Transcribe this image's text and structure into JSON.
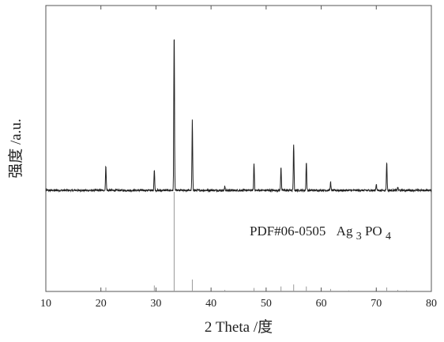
{
  "chart_data": {
    "type": "line",
    "xlabel": "2 Theta /度",
    "ylabel": "强度 /a.u.",
    "xlim": [
      10,
      80
    ],
    "x_ticks": [
      10,
      20,
      30,
      40,
      50,
      60,
      70,
      80
    ],
    "y_ticks_shown": false,
    "grid": false,
    "series": [
      {
        "role": "measured pattern",
        "baseline": 0.0,
        "peaks": [
          {
            "x": 20.9,
            "y": 0.16
          },
          {
            "x": 29.7,
            "y": 0.13
          },
          {
            "x": 33.3,
            "y": 1.0
          },
          {
            "x": 36.6,
            "y": 0.44
          },
          {
            "x": 42.5,
            "y": 0.025
          },
          {
            "x": 47.8,
            "y": 0.17
          },
          {
            "x": 52.7,
            "y": 0.15
          },
          {
            "x": 55.0,
            "y": 0.29
          },
          {
            "x": 57.3,
            "y": 0.18
          },
          {
            "x": 61.7,
            "y": 0.05
          },
          {
            "x": 70.0,
            "y": 0.04
          },
          {
            "x": 71.9,
            "y": 0.18
          },
          {
            "x": 73.9,
            "y": 0.02
          }
        ]
      },
      {
        "name": "PDF#06-0505 Ag3PO4",
        "role": "reference sticks",
        "sticks": [
          {
            "x": 20.9,
            "y": 0.04
          },
          {
            "x": 29.7,
            "y": 0.06
          },
          {
            "x": 33.3,
            "y": 1.0
          },
          {
            "x": 36.6,
            "y": 0.12
          },
          {
            "x": 42.5,
            "y": 0.015
          },
          {
            "x": 47.8,
            "y": 0.035
          },
          {
            "x": 52.7,
            "y": 0.05
          },
          {
            "x": 55.0,
            "y": 0.07
          },
          {
            "x": 57.3,
            "y": 0.05
          },
          {
            "x": 61.7,
            "y": 0.025
          },
          {
            "x": 65.0,
            "y": 0.01
          },
          {
            "x": 70.0,
            "y": 0.02
          },
          {
            "x": 71.9,
            "y": 0.04
          },
          {
            "x": 73.9,
            "y": 0.015
          },
          {
            "x": 75.5,
            "y": 0.01
          }
        ]
      }
    ],
    "annotation": {
      "prefix": "PDF#06-0505",
      "formula_parts": [
        "Ag",
        "3",
        "PO",
        "4"
      ]
    }
  }
}
